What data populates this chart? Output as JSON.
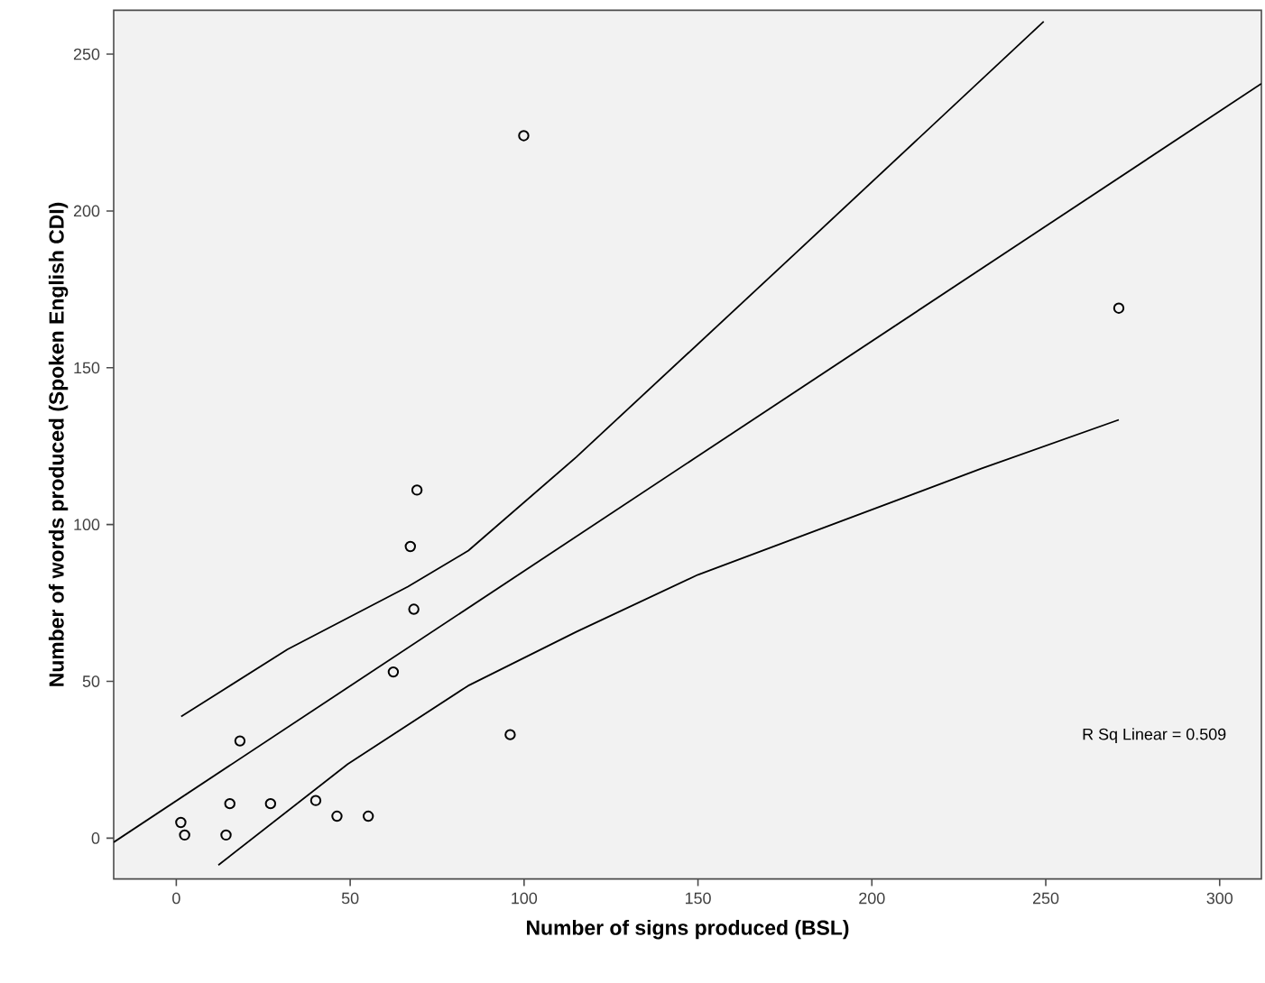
{
  "chart_data": {
    "type": "scatter",
    "xlabel": "Number of signs produced (BSL)",
    "ylabel": "Number of words produced (Spoken English CDI)",
    "xlim": [
      -18,
      312
    ],
    "ylim": [
      -13,
      264
    ],
    "xticks": [
      0,
      50,
      100,
      150,
      200,
      250,
      300
    ],
    "yticks": [
      0,
      50,
      100,
      150,
      200,
      250
    ],
    "grid": false,
    "marker": "circle",
    "annotations": [
      "R Sq Linear = 0.509"
    ],
    "series": [
      {
        "color": "#000000",
        "x": [
          69.2,
          67.3,
          68.3,
          62.4,
          18.3,
          96,
          15.4,
          27.1,
          40.1,
          46.2,
          55.2,
          1.3,
          2.4,
          14.3,
          99.9,
          271
        ],
        "values": [
          111,
          93,
          73,
          53,
          31,
          33,
          11,
          11,
          12,
          7,
          7,
          5,
          1,
          1,
          224,
          169
        ]
      },
      {
        "type": "line",
        "color": "#000000",
        "marker": "none",
        "line_style": "solid",
        "x": [
          -18,
          312
        ],
        "values": [
          -1.3,
          240.6
        ]
      },
      {
        "type": "line",
        "color": "#000000",
        "marker": "none",
        "line_style": "solid",
        "x": [
          1.4,
          32,
          66.6,
          84,
          115,
          179,
          249.4
        ],
        "values": [
          38.8,
          60.2,
          80.2,
          91.7,
          121.5,
          187.5,
          260.4
        ]
      },
      {
        "type": "line",
        "color": "#000000",
        "marker": "none",
        "line_style": "solid",
        "x": [
          12.1,
          49.3,
          83.9,
          115,
          150,
          231.6,
          271
        ],
        "values": [
          -8.6,
          23.6,
          48.6,
          65.8,
          84,
          117.9,
          133.4
        ]
      }
    ]
  }
}
